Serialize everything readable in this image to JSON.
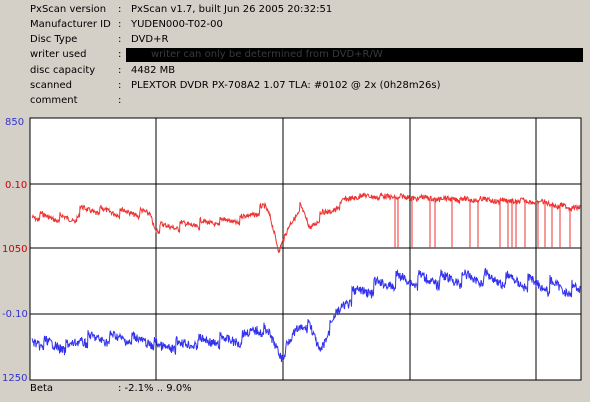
{
  "info": {
    "rows": [
      {
        "key": "PxScan version",
        "value": "PxScan v1.7, built Jun 26 2005 20:32:51"
      },
      {
        "key": "Manufacturer ID",
        "value": "YUDEN000-T02-00"
      },
      {
        "key": "Disc Type",
        "value": "DVD+R"
      },
      {
        "key": "writer used",
        "value": "writer can only be determined from DVD+R/W"
      },
      {
        "key": "disc capacity",
        "value": "4482 MB"
      },
      {
        "key": "scanned",
        "value": "PLEXTOR DVDR PX-708A2 1.07 TLA: #0102 @ 2x (0h28m26s)"
      },
      {
        "key": "comment",
        "value": ""
      }
    ]
  },
  "chart_data": {
    "type": "line",
    "panels": [
      {
        "ylabel_top": "850",
        "ylabel_mid": "0.10",
        "ylabel_bottom": "1050",
        "series": [
          {
            "color": "#ee3333"
          }
        ]
      },
      {
        "ylabel_mid": "-0.10",
        "ylabel_bottom": "1250",
        "series": [
          {
            "color": "#3333ee"
          }
        ]
      }
    ],
    "gridlines": true
  },
  "footer": {
    "label": "Beta",
    "value": ": -2.1% .. 9.0%"
  },
  "colors": {
    "background": "#d4d0c8",
    "red_series": "#ee3333",
    "blue_series": "#3333ee",
    "axis_text": "#3333cc"
  }
}
